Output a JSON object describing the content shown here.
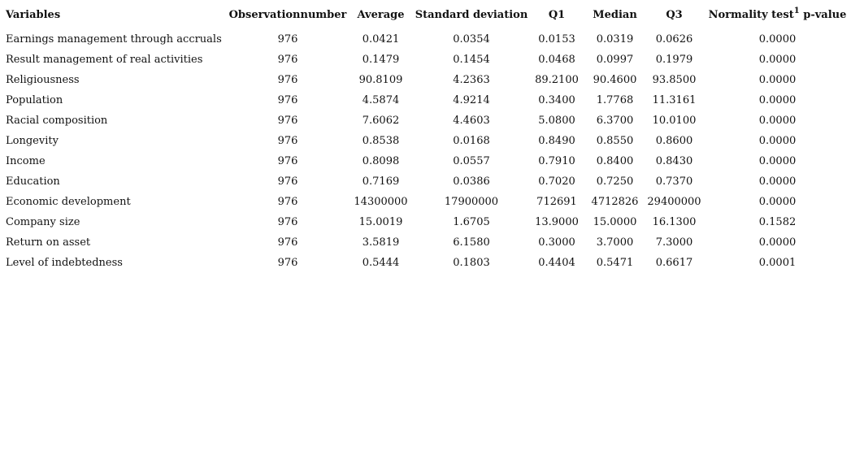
{
  "table": {
    "headers": {
      "variables": "Variables",
      "observation_number": "Observationnumber",
      "average": "Average",
      "standard_deviation": "Standard deviation",
      "q1": "Q1",
      "median": "Median",
      "q3": "Q3",
      "normality_label": "Normality test",
      "normality_sup": "1",
      "normality_pvalue": "p-value"
    },
    "rows": [
      {
        "variable": "Earnings management through accruals",
        "n": "976",
        "average": "0.0421",
        "sd": "0.0354",
        "q1": "0.0153",
        "median": "0.0319",
        "q3": "0.0626",
        "p": "0.0000"
      },
      {
        "variable": "Result management of real activities",
        "n": "976",
        "average": "0.1479",
        "sd": "0.1454",
        "q1": "0.0468",
        "median": "0.0997",
        "q3": "0.1979",
        "p": "0.0000"
      },
      {
        "variable": "Religiousness",
        "n": "976",
        "average": "90.8109",
        "sd": "4.2363",
        "q1": "89.2100",
        "median": "90.4600",
        "q3": "93.8500",
        "p": "0.0000"
      },
      {
        "variable": "Population",
        "n": "976",
        "average": "4.5874",
        "sd": "4.9214",
        "q1": "0.3400",
        "median": "1.7768",
        "q3": "11.3161",
        "p": "0.0000"
      },
      {
        "variable": "Racial composition",
        "n": "976",
        "average": "7.6062",
        "sd": "4.4603",
        "q1": "5.0800",
        "median": "6.3700",
        "q3": "10.0100",
        "p": "0.0000"
      },
      {
        "variable": "Longevity",
        "n": "976",
        "average": "0.8538",
        "sd": "0.0168",
        "q1": "0.8490",
        "median": "0.8550",
        "q3": "0.8600",
        "p": "0.0000"
      },
      {
        "variable": "Income",
        "n": "976",
        "average": "0.8098",
        "sd": "0.0557",
        "q1": "0.7910",
        "median": "0.8400",
        "q3": "0.8430",
        "p": "0.0000"
      },
      {
        "variable": "Education",
        "n": "976",
        "average": "0.7169",
        "sd": "0.0386",
        "q1": "0.7020",
        "median": "0.7250",
        "q3": "0.7370",
        "p": "0.0000"
      },
      {
        "variable": "Economic development",
        "n": "976",
        "average": "14300000",
        "sd": "17900000",
        "q1": "712691",
        "median": "4712826",
        "q3": "29400000",
        "p": "0.0000"
      },
      {
        "variable": "Company size",
        "n": "976",
        "average": "15.0019",
        "sd": "1.6705",
        "q1": "13.9000",
        "median": "15.0000",
        "q3": "16.1300",
        "p": "0.1582"
      },
      {
        "variable": "Return on asset",
        "n": "976",
        "average": "3.5819",
        "sd": "6.1580",
        "q1": "0.3000",
        "median": "3.7000",
        "q3": "7.3000",
        "p": "0.0000"
      },
      {
        "variable": "Level of indebtedness",
        "n": "976",
        "average": "0.5444",
        "sd": "0.1803",
        "q1": "0.4404",
        "median": "0.5471",
        "q3": "0.6617",
        "p": "0.0001"
      }
    ]
  }
}
